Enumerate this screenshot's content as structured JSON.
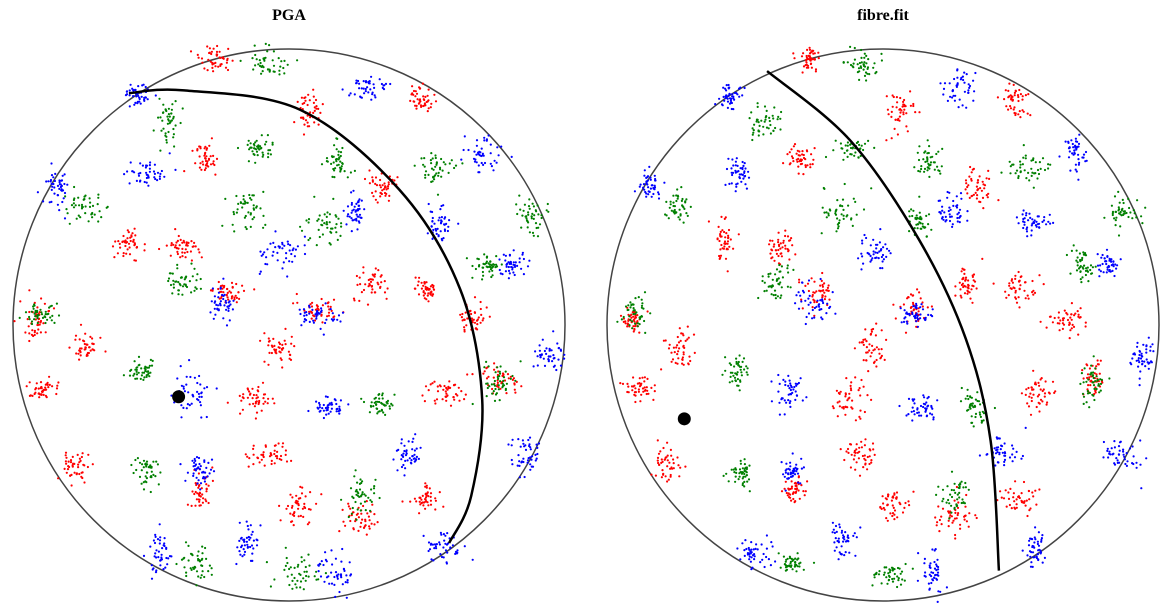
{
  "chart_data": [
    {
      "type": "scatter",
      "title": "PGA",
      "xlim": [
        -1,
        1
      ],
      "ylim": [
        -1,
        1
      ],
      "series": [
        {
          "color": "#ff0000",
          "x": [
            -0.27,
            0.07,
            0.48,
            -0.3,
            -0.58,
            -0.38,
            0.3,
            0.5,
            -0.23,
            0.11,
            0.67,
            -0.74,
            -0.04,
            -0.89,
            -0.12,
            0.57,
            -0.78,
            -0.08,
            -0.32,
            0.04,
            0.26,
            0.49,
            0.76,
            -0.91,
            0.34
          ],
          "values": [
            0.96,
            0.78,
            0.82,
            0.6,
            0.3,
            0.28,
            0.15,
            0.13,
            0.12,
            0.06,
            0.02,
            -0.08,
            -0.08,
            -0.23,
            -0.27,
            -0.25,
            -0.5,
            -0.47,
            -0.6,
            -0.65,
            -0.7,
            -0.63,
            -0.2,
            0.02,
            0.5
          ]
        },
        {
          "color": "#008000",
          "x": [
            -0.08,
            -0.44,
            -0.11,
            0.17,
            0.53,
            -0.74,
            -0.15,
            0.13,
            0.87,
            -0.39,
            0.72,
            -0.9,
            -0.53,
            0.33,
            0.76,
            -0.51,
            0.26,
            -0.33,
            0.03
          ],
          "values": [
            0.95,
            0.74,
            0.64,
            0.59,
            0.57,
            0.43,
            0.41,
            0.37,
            0.4,
            0.16,
            0.21,
            0.04,
            -0.17,
            -0.29,
            -0.21,
            -0.53,
            -0.62,
            -0.86,
            -0.9
          ]
        },
        {
          "color": "#0000ff",
          "x": [
            -0.55,
            0.28,
            0.7,
            -0.52,
            -0.84,
            0.24,
            0.54,
            -0.03,
            0.81,
            -0.24,
            0.11,
            0.94,
            -0.35,
            0.14,
            -0.32,
            -0.15,
            -0.47,
            0.18,
            0.55,
            0.43,
            0.86
          ],
          "values": [
            0.83,
            0.86,
            0.62,
            0.55,
            0.51,
            0.41,
            0.37,
            0.26,
            0.22,
            0.07,
            0.03,
            -0.11,
            -0.24,
            -0.3,
            -0.53,
            -0.78,
            -0.83,
            -0.9,
            -0.81,
            -0.46,
            -0.47
          ]
        }
      ],
      "curve": {
        "color": "#000000",
        "x": [
          -0.58,
          -0.38,
          0.04,
          0.4,
          0.62,
          0.7,
          0.66,
          0.58
        ],
        "values": [
          0.84,
          0.85,
          0.78,
          0.49,
          0.13,
          -0.27,
          -0.62,
          -0.79
        ]
      },
      "point": {
        "color": "#000000",
        "x": -0.4,
        "value": -0.26
      }
    },
    {
      "type": "scatter",
      "title": "fibre.fit",
      "xlim": [
        -1,
        1
      ],
      "ylim": [
        -1,
        1
      ],
      "series": [
        {
          "color": "#ff0000",
          "x": [
            -0.27,
            0.07,
            0.48,
            -0.3,
            -0.58,
            -0.38,
            0.3,
            0.5,
            -0.23,
            0.11,
            0.67,
            -0.74,
            -0.04,
            -0.89,
            -0.12,
            0.57,
            -0.78,
            -0.08,
            -0.32,
            0.04,
            0.26,
            0.49,
            0.76,
            -0.91,
            0.34
          ],
          "values": [
            0.96,
            0.78,
            0.82,
            0.6,
            0.3,
            0.28,
            0.15,
            0.13,
            0.12,
            0.06,
            0.02,
            -0.08,
            -0.08,
            -0.23,
            -0.27,
            -0.25,
            -0.5,
            -0.47,
            -0.6,
            -0.65,
            -0.7,
            -0.63,
            -0.2,
            0.02,
            0.5
          ]
        },
        {
          "color": "#008000",
          "x": [
            -0.08,
            -0.44,
            -0.11,
            0.17,
            0.53,
            -0.74,
            -0.15,
            0.13,
            0.87,
            -0.39,
            0.72,
            -0.9,
            -0.53,
            0.33,
            0.76,
            -0.51,
            0.26,
            -0.33,
            0.03
          ],
          "values": [
            0.95,
            0.74,
            0.64,
            0.59,
            0.57,
            0.43,
            0.41,
            0.37,
            0.4,
            0.16,
            0.21,
            0.04,
            -0.17,
            -0.29,
            -0.21,
            -0.53,
            -0.62,
            -0.86,
            -0.9
          ]
        },
        {
          "color": "#0000ff",
          "x": [
            -0.55,
            0.28,
            0.7,
            -0.52,
            -0.84,
            0.24,
            0.54,
            -0.03,
            0.81,
            -0.24,
            0.11,
            0.94,
            -0.35,
            0.14,
            -0.32,
            -0.15,
            -0.47,
            0.18,
            0.55,
            0.43,
            0.86
          ],
          "values": [
            0.83,
            0.86,
            0.62,
            0.55,
            0.51,
            0.41,
            0.37,
            0.26,
            0.22,
            0.07,
            0.03,
            -0.11,
            -0.24,
            -0.3,
            -0.53,
            -0.78,
            -0.83,
            -0.9,
            -0.81,
            -0.46,
            -0.47
          ]
        }
      ],
      "curve": {
        "color": "#000000",
        "x": [
          -0.42,
          -0.12,
          0.13,
          0.3,
          0.39,
          0.42
        ],
        "values": [
          0.92,
          0.67,
          0.31,
          -0.05,
          -0.42,
          -0.89
        ]
      },
      "point": {
        "color": "#000000",
        "x": -0.72,
        "value": -0.34
      }
    }
  ]
}
